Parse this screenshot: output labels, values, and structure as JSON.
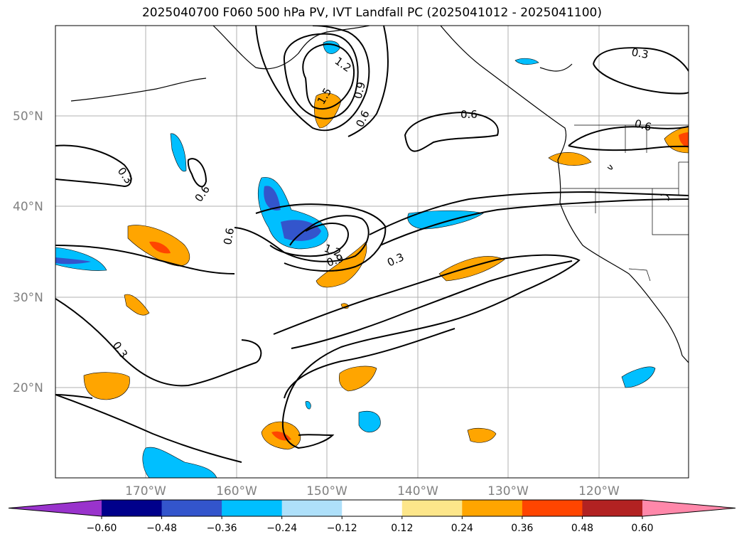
{
  "title": "2025040700 F060 500 hPa PV, IVT Landfall PC (2025041012 - 2025041100)",
  "lat_labels": [
    "50°N",
    "40°N",
    "30°N",
    "20°N"
  ],
  "lon_labels": [
    "170°W",
    "160°W",
    "150°W",
    "140°W",
    "130°W",
    "120°W"
  ],
  "colorbar": {
    "ticks": [
      "−0.60",
      "−0.48",
      "−0.36",
      "−0.24",
      "−0.12",
      "0.12",
      "0.24",
      "0.36",
      "0.48",
      "0.60"
    ],
    "colors": [
      "#9933cc",
      "#00008b",
      "#3355cc",
      "#00bfff",
      "#aee0fa",
      "#ffffff",
      "#fde68a",
      "#ffa500",
      "#ff4500",
      "#b22222",
      "#ff88aa"
    ]
  },
  "contour_labels": [
    "1.2",
    "1.5",
    "0.9",
    "0.6",
    "0.6",
    "0.3",
    "0.6",
    "0.3",
    "0.6",
    "0.6",
    "1.2",
    "0.9",
    "0.3",
    "0.3"
  ],
  "colors": {
    "contour": "#000000",
    "grid": "#b0b0b0",
    "axis_text": "#808080"
  }
}
